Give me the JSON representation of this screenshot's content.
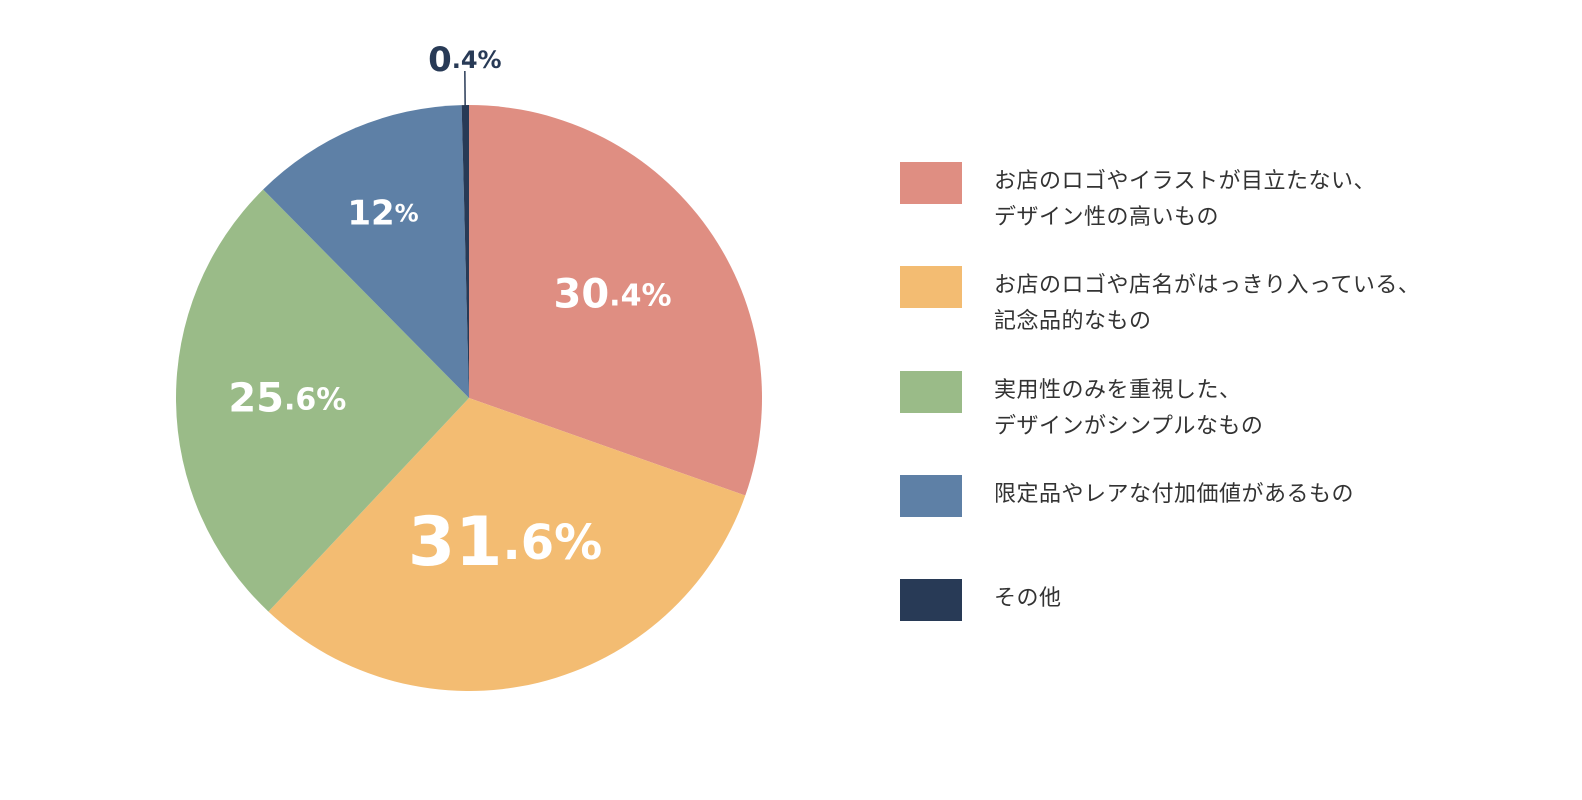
{
  "chart_data": {
    "type": "pie",
    "start_angle_deg": 0,
    "direction": "clockwise",
    "slices": [
      {
        "label": "お店のロゴやイラストが目立たない、\nデザイン性の高いもの",
        "value": 30.4,
        "value_label_main": "30",
        "value_label_suffix": ".4%",
        "color": "#DF8E82"
      },
      {
        "label": "お店のロゴや店名がはっきり入っている、\n記念品的なもの",
        "value": 31.6,
        "value_label_main": "31",
        "value_label_suffix": ".6%",
        "color": "#F3BC72"
      },
      {
        "label": "実用性のみを重視した、\nデザインがシンプルなもの",
        "value": 25.6,
        "value_label_main": "25",
        "value_label_suffix": ".6%",
        "color": "#9ABB88"
      },
      {
        "label": "限定品やレアな付加価値があるもの",
        "value": 12,
        "value_label_main": "12",
        "value_label_suffix": "%",
        "color": "#5E80A6"
      },
      {
        "label": "その他",
        "value": 0.4,
        "value_label_main": "0",
        "value_label_suffix": ".4%",
        "color": "#283A56"
      }
    ],
    "legend_position": "right"
  }
}
